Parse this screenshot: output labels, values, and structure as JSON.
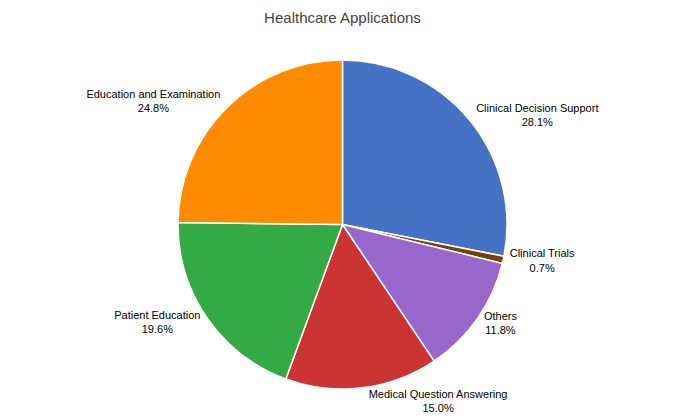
{
  "chart_data": {
    "type": "pie",
    "title": "Healthcare Applications",
    "categories": [
      "Clinical Decision Support",
      "Clinical Trials",
      "Others",
      "Medical Question Answering",
      "Patient Education",
      "Education and Examination"
    ],
    "values": [
      28.1,
      0.7,
      11.8,
      15.0,
      19.6,
      24.8
    ],
    "value_labels": [
      "28.1%",
      "0.7%",
      "11.8%",
      "15.0%",
      "19.6%",
      "24.8%"
    ],
    "colors": [
      "#4472C4",
      "#7B3F00",
      "#9966CC",
      "#CC3333",
      "#33AA44",
      "#FF8C00"
    ],
    "data_labels": true
  }
}
